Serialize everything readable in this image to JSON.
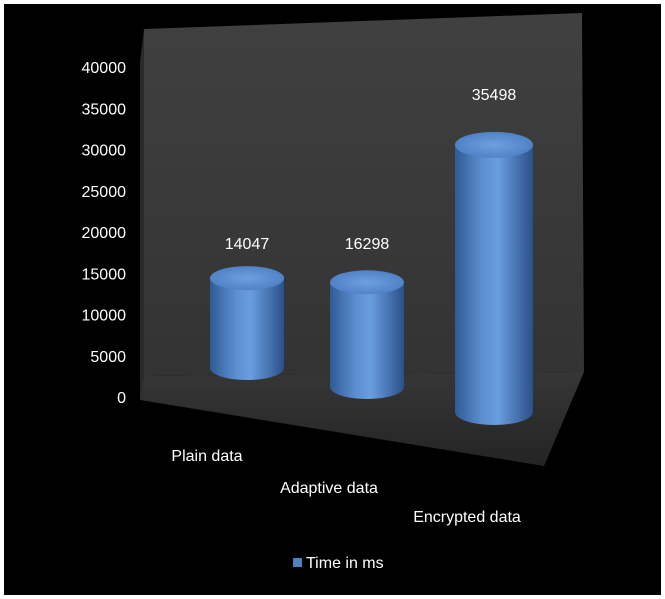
{
  "chart_data": {
    "type": "bar",
    "style": "3d-cylinder",
    "categories": [
      "Plain data",
      "Adaptive data",
      "Encrypted data"
    ],
    "series": [
      {
        "name": "Time in ms",
        "values": [
          14047,
          16298,
          35498
        ],
        "color": "#4f81bd"
      }
    ],
    "yticks": [
      "0",
      "5000",
      "10000",
      "15000",
      "20000",
      "25000",
      "30000",
      "35000",
      "40000"
    ],
    "ylim": [
      0,
      40000
    ],
    "data_labels": [
      "14047",
      "16298",
      "35498"
    ],
    "legend_position": "bottom",
    "background": "#000000",
    "wall_color": "#3c3c3c",
    "floor_color": "#2e2e2e"
  }
}
